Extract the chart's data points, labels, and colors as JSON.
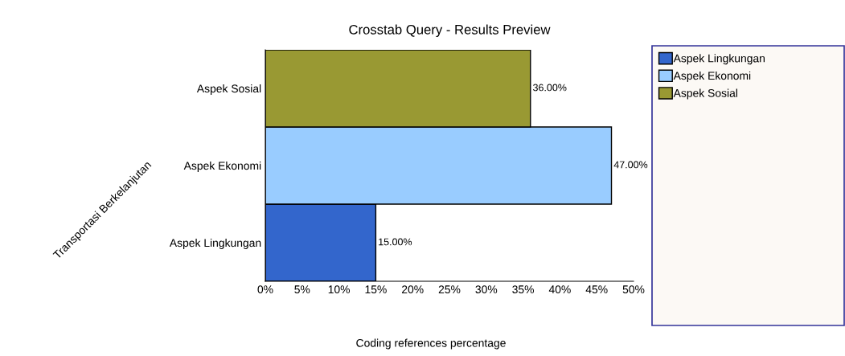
{
  "chart_data": {
    "type": "bar",
    "orientation": "horizontal",
    "title": "Crosstab Query - Results Preview",
    "xlabel": "Coding references percentage",
    "ylabel": "Transportasi Berkelanjutan",
    "categories": [
      "Aspek Sosial",
      "Aspek Ekonomi",
      "Aspek Lingkungan"
    ],
    "series": [
      {
        "name": "Aspek Lingkungan",
        "color": "#3366cc",
        "values": [
          null,
          null,
          15
        ],
        "value_labels": [
          null,
          null,
          "15.00%"
        ]
      },
      {
        "name": "Aspek Ekonomi",
        "color": "#99ccff",
        "values": [
          null,
          47,
          null
        ],
        "value_labels": [
          null,
          "47.00%",
          null
        ]
      },
      {
        "name": "Aspek Sosial",
        "color": "#999933",
        "values": [
          36,
          null,
          null
        ],
        "value_labels": [
          "36.00%",
          null,
          null
        ]
      }
    ],
    "xlim": [
      0,
      50
    ],
    "xticks": [
      {
        "value": 0,
        "label": "0%"
      },
      {
        "value": 5,
        "label": "5%"
      },
      {
        "value": 10,
        "label": "10%"
      },
      {
        "value": 15,
        "label": "15%"
      },
      {
        "value": 20,
        "label": "20%"
      },
      {
        "value": 25,
        "label": "25%"
      },
      {
        "value": 30,
        "label": "30%"
      },
      {
        "value": 35,
        "label": "35%"
      },
      {
        "value": 40,
        "label": "40%"
      },
      {
        "value": 45,
        "label": "45%"
      },
      {
        "value": 50,
        "label": "50%"
      }
    ],
    "legend": "right",
    "grid": false
  }
}
